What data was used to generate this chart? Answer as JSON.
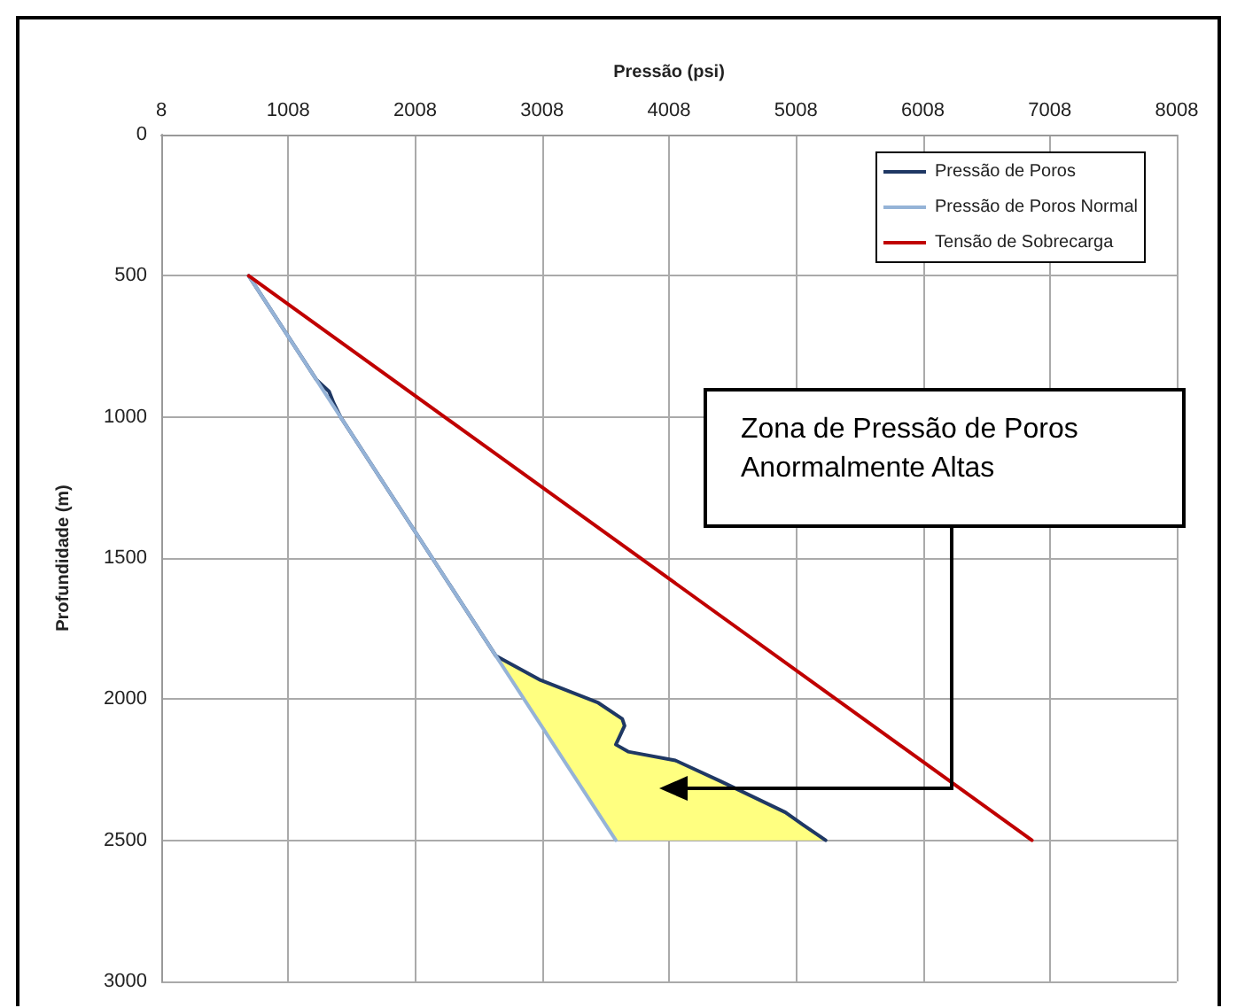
{
  "chart_data": {
    "type": "line",
    "xlabel": "Pressão (psi)",
    "ylabel": "Profundidade (m)",
    "xlim": [
      8,
      8008
    ],
    "xticks": [
      8,
      1008,
      2008,
      3008,
      4008,
      5008,
      6008,
      7008,
      8008
    ],
    "ylim": [
      3000,
      0
    ],
    "yticks": [
      0,
      500,
      1000,
      1500,
      2000,
      2500,
      3000
    ],
    "grid": true,
    "legend": "top right",
    "marker": "none",
    "line_style": "solid",
    "annotations": [
      "Zona de Pressão de Poros Anormalmente Altas"
    ],
    "series": [
      {
        "type": "area",
        "color": "#ffff80",
        "x": [
          2645,
          2997,
          3451,
          3640,
          3658,
          3589,
          3686,
          4058,
          4416,
          4925,
          5063,
          5242,
          3589
        ],
        "values": [
          1847,
          1933,
          2013,
          2070,
          2094,
          2161,
          2186,
          2217,
          2291,
          2401,
          2445,
          2500,
          2500
        ]
      },
      {
        "name": "Pressão de Poros",
        "color": "#1f3864",
        "x": [
          697,
          1230,
          1330,
          1365,
          1420,
          2645,
          2997,
          3451,
          3640,
          3658,
          3589,
          3686,
          4058,
          4416,
          4925,
          5063,
          5242
        ],
        "values": [
          500,
          868,
          910,
          950,
          1000,
          1847,
          1933,
          2013,
          2070,
          2094,
          2161,
          2186,
          2217,
          2291,
          2401,
          2445,
          2500
        ]
      },
      {
        "name": "Pressão de Poros Normal",
        "color": "#95b3d7",
        "x": [
          697,
          3589
        ],
        "values": [
          500,
          2500
        ]
      },
      {
        "name": "Tensão de Sobrecarga",
        "color": "#c00000",
        "x": [
          697,
          6867
        ],
        "values": [
          500,
          2500
        ]
      }
    ]
  }
}
